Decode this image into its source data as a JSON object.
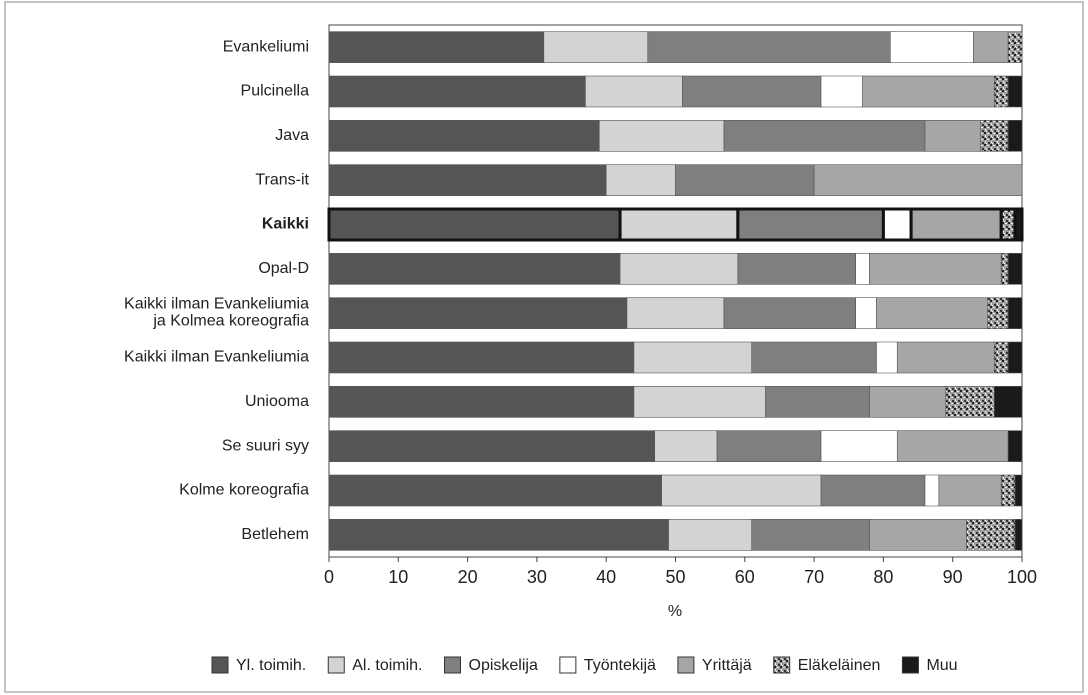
{
  "chart_data": {
    "type": "stacked-barh",
    "xlabel": "%",
    "categories": [
      "Evankeliumi",
      "Pulcinella",
      "Java",
      "Trans-it",
      "Kaikki",
      "Opal-D",
      "Kaikki ilman Evankeliumia\nja Kolmea koreografia",
      "Kaikki ilman Evankeliumia",
      "Uniooma",
      "Se suuri syy",
      "Kolme koreografia",
      "Betlehem"
    ],
    "highlight_index": 4,
    "series": [
      {
        "name": "Yl. toimih.",
        "color": "#555555",
        "values": [
          31,
          37,
          39,
          40,
          42,
          42,
          43,
          44,
          44,
          47,
          48,
          49
        ]
      },
      {
        "name": "Al. toimih.",
        "color": "#d3d3d3",
        "values": [
          15,
          14,
          18,
          10,
          17,
          17,
          14,
          17,
          19,
          9,
          23,
          12
        ]
      },
      {
        "name": "Opiskelija",
        "color": "#7f7f7f",
        "values": [
          35,
          20,
          29,
          20,
          21,
          17,
          19,
          18,
          15,
          15,
          15,
          17
        ]
      },
      {
        "name": "Työntekijä",
        "color": "#ffffff",
        "values": [
          12,
          6,
          0,
          0,
          4,
          2,
          3,
          3,
          0,
          11,
          2,
          0
        ]
      },
      {
        "name": "Yrittäjä",
        "color": "#a6a6a6",
        "values": [
          5,
          19,
          8,
          30,
          13,
          19,
          16,
          14,
          11,
          16,
          9,
          14
        ]
      },
      {
        "name": "Eläkeläinen",
        "color": "#9a9a9a",
        "pattern": true,
        "values": [
          2,
          2,
          4,
          0,
          2,
          1,
          3,
          2,
          7,
          0,
          2,
          7
        ]
      },
      {
        "name": "Muu",
        "color": "#1a1a1a",
        "values": [
          0,
          2,
          2,
          0,
          1,
          2,
          2,
          2,
          4,
          2,
          1,
          1
        ]
      }
    ],
    "xlim": [
      0,
      100
    ],
    "xticks": [
      0,
      10,
      20,
      30,
      40,
      50,
      60,
      70,
      80,
      90,
      100
    ],
    "grid": false
  }
}
